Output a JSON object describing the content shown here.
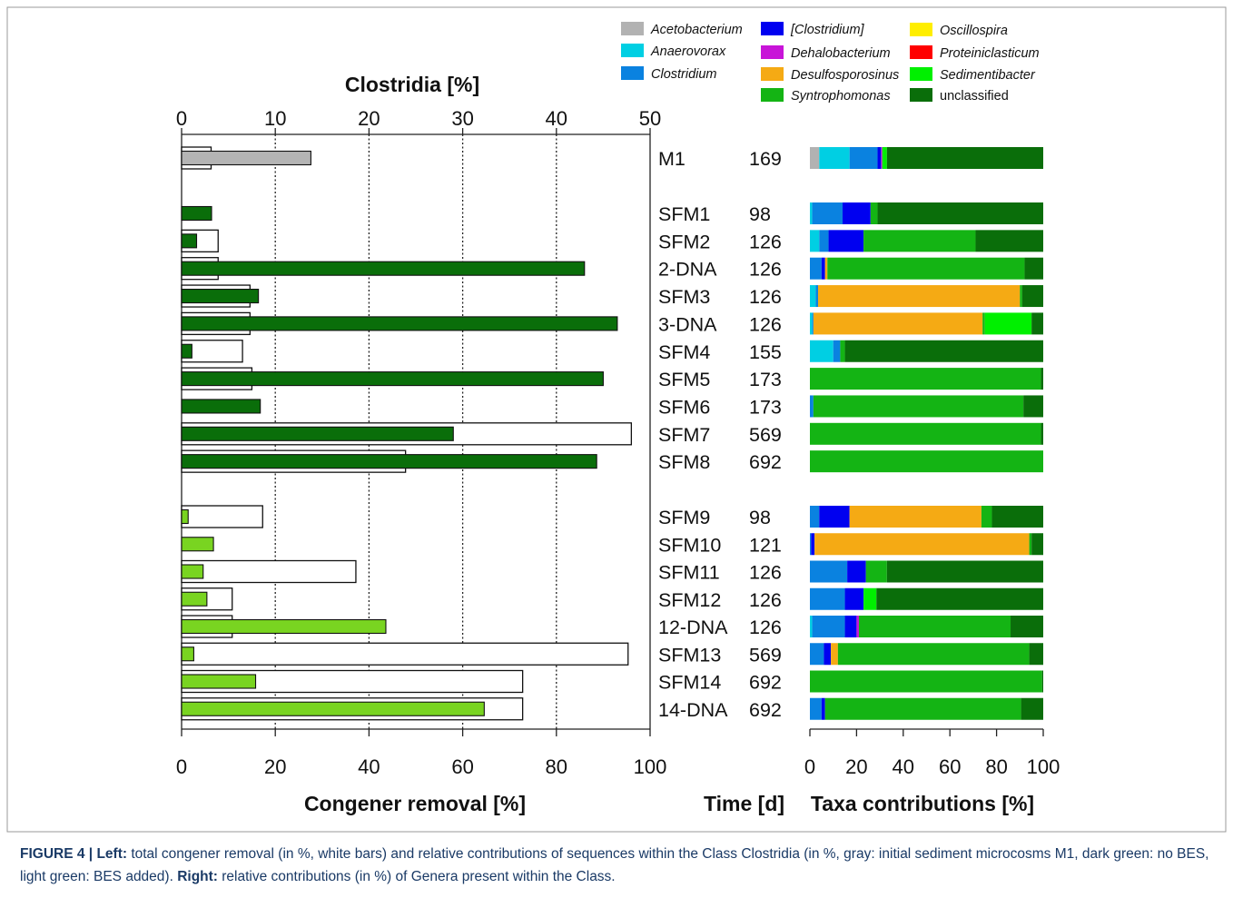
{
  "chart_data": [
    {
      "type": "bar",
      "name": "congener-removal-and-clostridia",
      "top_axis_label": "Clostridia [%]",
      "top_axis_range": [
        0,
        50
      ],
      "top_axis_ticks": [
        "0",
        "10",
        "20",
        "30",
        "40",
        "50"
      ],
      "bottom_axis_label": "Congener removal [%]",
      "bottom_axis_range": [
        0,
        100
      ],
      "bottom_axis_ticks": [
        "0",
        "20",
        "40",
        "60",
        "80",
        "100"
      ],
      "grid": "vertical dotted",
      "time_header": "Time [d]",
      "colors": {
        "M1": "#b4b4b4",
        "no_BES": "#0a6e0a",
        "BES": "#79d421",
        "removal": "#ffffff"
      },
      "samples": [
        {
          "label": "M1",
          "time": "169",
          "group": "M1",
          "removal": 6.3,
          "clostridia": 13.8
        },
        {
          "label": "SFM1",
          "time": "98",
          "group": "no_BES",
          "removal": null,
          "clostridia": 3.2
        },
        {
          "label": "SFM2",
          "time": "126",
          "group": "no_BES",
          "removal": 7.8,
          "clostridia": 1.6
        },
        {
          "label": "2-DNA",
          "time": "126",
          "group": "no_BES",
          "removal": 7.8,
          "clostridia": 43.0
        },
        {
          "label": "SFM3",
          "time": "126",
          "group": "no_BES",
          "removal": 14.6,
          "clostridia": 8.2
        },
        {
          "label": "3-DNA",
          "time": "126",
          "group": "no_BES",
          "removal": 14.6,
          "clostridia": 46.5
        },
        {
          "label": "SFM4",
          "time": "155",
          "group": "no_BES",
          "removal": 13.0,
          "clostridia": 1.1
        },
        {
          "label": "SFM5",
          "time": "173",
          "group": "no_BES",
          "removal": 15.0,
          "clostridia": 45.0
        },
        {
          "label": "SFM6",
          "time": "173",
          "group": "no_BES",
          "removal": null,
          "clostridia": 8.4
        },
        {
          "label": "SFM7",
          "time": "569",
          "group": "no_BES",
          "removal": 96.0,
          "clostridia": 29.0
        },
        {
          "label": "SFM8",
          "time": "692",
          "group": "no_BES",
          "removal": 47.8,
          "clostridia": 44.3
        },
        {
          "label": "SFM9",
          "time": "98",
          "group": "BES",
          "removal": 17.3,
          "clostridia": 0.7
        },
        {
          "label": "SFM10",
          "time": "121",
          "group": "BES",
          "removal": null,
          "clostridia": 3.4
        },
        {
          "label": "SFM11",
          "time": "126",
          "group": "BES",
          "removal": 37.2,
          "clostridia": 2.3
        },
        {
          "label": "SFM12",
          "time": "126",
          "group": "BES",
          "removal": 10.8,
          "clostridia": 2.7
        },
        {
          "label": "12-DNA",
          "time": "126",
          "group": "BES",
          "removal": 10.8,
          "clostridia": 21.8
        },
        {
          "label": "SFM13",
          "time": "569",
          "group": "BES",
          "removal": 95.3,
          "clostridia": 1.3
        },
        {
          "label": "SFM14",
          "time": "692",
          "group": "BES",
          "removal": 72.8,
          "clostridia": 7.9
        },
        {
          "label": "14-DNA",
          "time": "692",
          "group": "BES",
          "removal": 72.8,
          "clostridia": 32.3
        }
      ]
    },
    {
      "type": "bar",
      "stacked": true,
      "orientation": "horizontal",
      "name": "taxa-contributions",
      "xlabel": "Taxa contributions [%]",
      "xlim": [
        0,
        100
      ],
      "ticks": [
        "0",
        "20",
        "40",
        "60",
        "80",
        "100"
      ],
      "legend_position": "top-right",
      "taxa": [
        {
          "name": "Acetobacterium",
          "color": "#b2b2b2",
          "italic": true
        },
        {
          "name": "Anaerovorax",
          "color": "#00cfe3",
          "italic": true
        },
        {
          "name": "Clostridium",
          "color": "#0a82e0",
          "italic": true
        },
        {
          "name": "[Clostridium]",
          "color": "#0000f0",
          "italic": true
        },
        {
          "name": "Dehalobacterium",
          "color": "#c814d8",
          "italic": true
        },
        {
          "name": "Desulfosporosinus",
          "color": "#f5aa14",
          "italic": true
        },
        {
          "name": "Syntrophomonas",
          "color": "#14b414",
          "italic": true
        },
        {
          "name": "Oscillospira",
          "color": "#ffee00",
          "italic": true
        },
        {
          "name": "Proteiniclasticum",
          "color": "#ff0000",
          "italic": true
        },
        {
          "name": "Sedimentibacter",
          "color": "#00f000",
          "italic": true
        },
        {
          "name": "unclassified",
          "color": "#0a6e0a",
          "italic": false
        }
      ],
      "order": [
        "Acetobacterium",
        "Anaerovorax",
        "Clostridium",
        "[Clostridium]",
        "Dehalobacterium",
        "Desulfosporosinus",
        "Syntrophomonas",
        "Oscillospira",
        "Proteiniclasticum",
        "Sedimentibacter",
        "unclassified"
      ],
      "values": {
        "M1": [
          4,
          13,
          12,
          1.5,
          0.5,
          0,
          0,
          0,
          0,
          2,
          67
        ],
        "SFM1": [
          0,
          1,
          13,
          12,
          0,
          0,
          3,
          0,
          0,
          0,
          71
        ],
        "SFM2": [
          0,
          4,
          4,
          15,
          0,
          0,
          48,
          0,
          0,
          0,
          29
        ],
        "2-DNA": [
          0,
          0,
          5,
          1.5,
          0,
          1,
          84.5,
          0,
          0,
          0,
          8
        ],
        "SFM3": [
          0,
          2.5,
          1,
          0,
          0,
          86.5,
          1,
          0,
          0,
          0,
          9
        ],
        "3-DNA": [
          0,
          1,
          0.5,
          0,
          0,
          72.5,
          1,
          0,
          0,
          20,
          5
        ],
        "SFM4": [
          0,
          10,
          3,
          0,
          0,
          0,
          2,
          0,
          0,
          0,
          85
        ],
        "SFM5": [
          0,
          0,
          0,
          0,
          0,
          0,
          99,
          0,
          0,
          0,
          1
        ],
        "SFM6": [
          0,
          0,
          1.5,
          0,
          0,
          0,
          90,
          0,
          0,
          0,
          8.5
        ],
        "SFM7": [
          0,
          0,
          0,
          0,
          0,
          0,
          99,
          0,
          0,
          0,
          1
        ],
        "SFM8": [
          0,
          0,
          0,
          0,
          0,
          0,
          100,
          0,
          0,
          0,
          0
        ],
        "SFM9": [
          0,
          0,
          4,
          13,
          0,
          56.5,
          4.5,
          0,
          0,
          0,
          22
        ],
        "SFM10": [
          0,
          0,
          0.5,
          1.5,
          0,
          92,
          1,
          0,
          0,
          0,
          5
        ],
        "SFM11": [
          0,
          0,
          16,
          8,
          0,
          0,
          9,
          0,
          0,
          0,
          67
        ],
        "SFM12": [
          0,
          0,
          15,
          8,
          0,
          0,
          0,
          0,
          0,
          5.5,
          71.5
        ],
        "12-DNA": [
          0,
          1,
          14,
          5,
          1,
          0,
          65,
          0,
          0,
          0,
          14
        ],
        "SFM13": [
          0,
          0,
          6,
          3,
          0,
          3,
          82,
          0,
          0,
          0,
          6
        ],
        "SFM14": [
          0,
          0,
          0,
          0,
          0,
          0,
          99.5,
          0,
          0,
          0,
          0.5
        ],
        "14-DNA": [
          0,
          0,
          5,
          1.5,
          0,
          0,
          84,
          0,
          0,
          0,
          9.5
        ]
      }
    }
  ],
  "caption": {
    "prefix": "FIGURE 4 | ",
    "left_label": "Left:",
    "left_text": " total congener removal (in %, white bars) and relative contributions of sequences within the Class Clostridia (in %, gray: initial sediment microcosms M1, dark green: no BES, light green: BES added). ",
    "right_label": "Right:",
    "right_text": " relative contributions (in %) of Genera present within the Class."
  }
}
